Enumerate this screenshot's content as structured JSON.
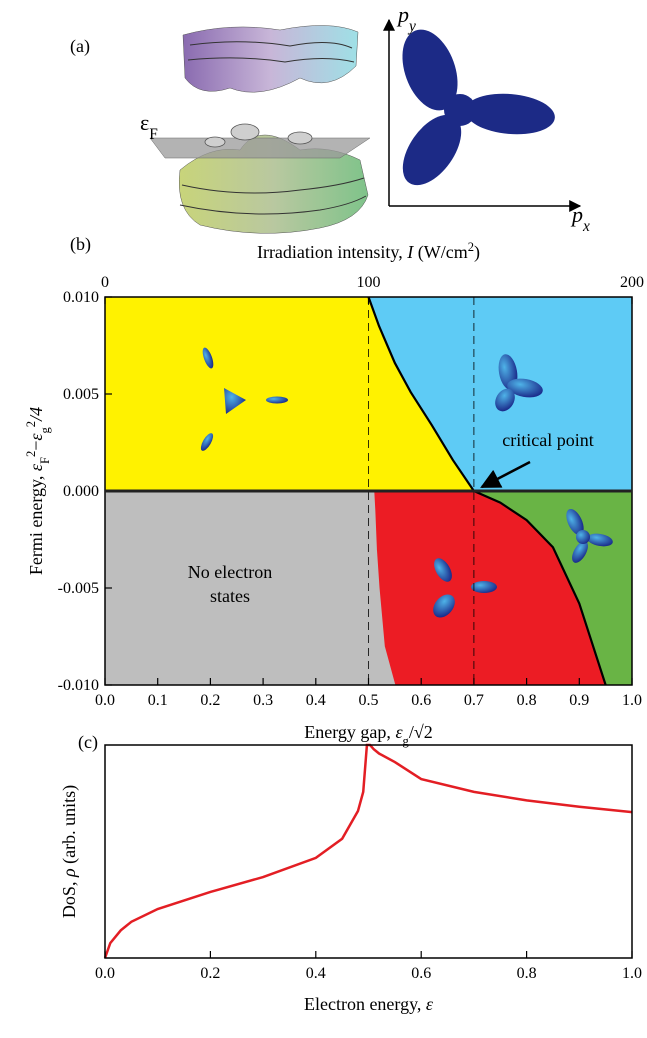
{
  "illustration": {
    "label": "(a)",
    "fermi_label": [
      "ε",
      "F"
    ],
    "py_label": [
      "p",
      "y"
    ],
    "px_label": [
      "p",
      "x"
    ]
  },
  "chart_data": [
    {
      "type": "phase",
      "panel_label": "(b)",
      "x_label": [
        "Energy gap, ",
        "ε",
        "g",
        "/√2"
      ],
      "x2_label": [
        "Irradiation intensity, ",
        "I",
        " (W/cm",
        "2",
        ")"
      ],
      "y_label": [
        "Fermi energy,  ",
        "ε",
        "F",
        "2",
        "−",
        "ε",
        "g",
        "2",
        "/4"
      ],
      "xlim": [
        0,
        1
      ],
      "xticks": [
        {
          "value": 0,
          "label": "0.0"
        },
        0.1,
        0.2,
        0.3,
        0.4,
        0.5,
        0.6,
        0.7,
        0.8,
        0.9,
        {
          "value": 1,
          "label": "1.0"
        }
      ],
      "x2lim": [
        0,
        200
      ],
      "x2ticks": [
        0,
        100,
        200
      ],
      "ylim": [
        -0.01,
        0.01
      ],
      "yticks": [
        {
          "value": -0.01,
          "label": "-0.010"
        },
        -0.005,
        {
          "value": 0,
          "label": "0.000"
        },
        0.005,
        {
          "value": 0.01,
          "label": "0.010"
        }
      ],
      "region_colors": [
        "#fff200",
        "#5ecbf5",
        "#bebebe",
        "#ec1c24",
        "#69b445"
      ],
      "boundaries": [
        {
          "x": [
            0.5,
            0.52,
            0.55,
            0.58,
            0.62,
            0.66,
            0.7
          ],
          "values": [
            0.01,
            0.0085,
            0.0066,
            0.0051,
            0.0034,
            0.0016,
            0
          ]
        },
        {
          "x": [
            0.7,
            0.75,
            0.8,
            0.85,
            0.9,
            0.95
          ],
          "values": [
            0,
            -0.0006,
            -0.0015,
            -0.0029,
            -0.0058,
            -0.01
          ]
        },
        {
          "x": [
            0.51,
            0.512,
            0.515,
            0.52,
            0.53,
            0.55
          ],
          "values": [
            0,
            -0.001,
            -0.003,
            -0.005,
            -0.008,
            -0.01
          ]
        }
      ],
      "vlines": [
        0.5,
        0.7
      ],
      "annotations": [
        {
          "text": [
            "No electron",
            "states"
          ]
        },
        {
          "text": [
            "critical point"
          ],
          "x": 0.7,
          "y": 0
        }
      ]
    },
    {
      "type": "line",
      "panel_label": "(c)",
      "x_label": [
        "Electron energy, ",
        "ε"
      ],
      "y_label": [
        "DoS, ",
        "ρ",
        " (arb. units)"
      ],
      "xlim": [
        0,
        1
      ],
      "xticks": [
        {
          "value": 0,
          "label": "0.0"
        },
        0.2,
        0.4,
        0.6,
        0.8,
        {
          "value": 1,
          "label": "1.0"
        }
      ],
      "ylim": [
        0,
        1
      ],
      "series": [
        {
          "color": "#e31e24",
          "x": [
            0,
            0.01,
            0.03,
            0.05,
            0.1,
            0.2,
            0.3,
            0.4,
            0.45,
            0.48,
            0.49,
            0.497,
            0.503,
            0.51,
            0.52,
            0.55,
            0.6,
            0.7,
            0.8,
            0.9,
            1
          ],
          "values": [
            0,
            0.07,
            0.13,
            0.17,
            0.23,
            0.31,
            0.38,
            0.47,
            0.56,
            0.69,
            0.78,
            1,
            1,
            0.98,
            0.96,
            0.92,
            0.84,
            0.78,
            0.74,
            0.71,
            0.685
          ]
        }
      ]
    }
  ]
}
